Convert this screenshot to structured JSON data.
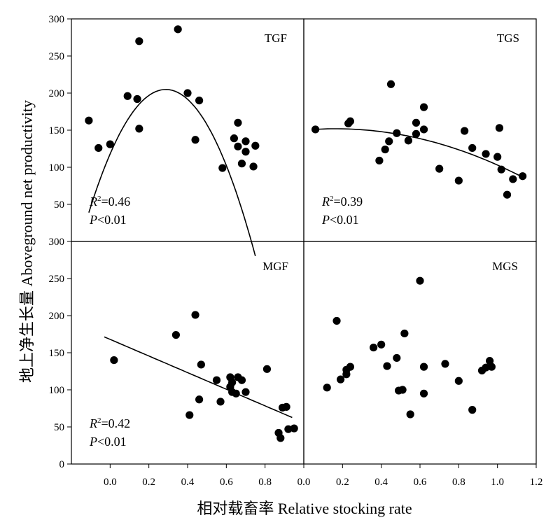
{
  "figure": {
    "ylabel": "地上净生长量 Aboveground net productivity",
    "xlabel": "相对载畜率 Relative stocking rate"
  },
  "chart_data": [
    {
      "type": "scatter",
      "panel": "TGF",
      "xlim": [
        -0.2,
        1.0
      ],
      "ylim": [
        0,
        300
      ],
      "xticks": [
        "0.0",
        "0.2",
        "0.4",
        "0.6",
        "0.8"
      ],
      "yticks": [
        "300",
        "250",
        "200",
        "150",
        "100",
        "50"
      ],
      "points": [
        [
          -0.11,
          163
        ],
        [
          -0.06,
          126
        ],
        [
          0.0,
          131
        ],
        [
          0.09,
          196
        ],
        [
          0.14,
          192
        ],
        [
          0.15,
          152
        ],
        [
          0.15,
          270
        ],
        [
          0.35,
          286
        ],
        [
          0.4,
          200
        ],
        [
          0.44,
          137
        ],
        [
          0.46,
          190
        ],
        [
          0.58,
          99
        ],
        [
          0.64,
          139
        ],
        [
          0.66,
          160
        ],
        [
          0.66,
          128
        ],
        [
          0.68,
          105
        ],
        [
          0.7,
          135
        ],
        [
          0.7,
          121
        ],
        [
          0.74,
          101
        ],
        [
          0.75,
          129
        ]
      ],
      "fit": {
        "type": "quadratic",
        "x_range": [
          -0.11,
          0.75
        ],
        "coef": [
          118,
          604,
          -1050
        ]
      },
      "r2_label": "R",
      "r2_sup": "2",
      "r2_value": "=0.46",
      "p_label": "P",
      "p_value": "<0.01"
    },
    {
      "type": "scatter",
      "panel": "TGS",
      "xlim": [
        0.0,
        1.2
      ],
      "ylim": [
        0,
        300
      ],
      "xticks": [
        "0.0",
        "0.2",
        "0.4",
        "0.6",
        "0.8",
        "1.0",
        "1.2"
      ],
      "yticks": [],
      "points": [
        [
          0.06,
          151
        ],
        [
          0.23,
          159
        ],
        [
          0.24,
          162
        ],
        [
          0.39,
          109
        ],
        [
          0.42,
          124
        ],
        [
          0.44,
          135
        ],
        [
          0.45,
          212
        ],
        [
          0.48,
          146
        ],
        [
          0.54,
          136
        ],
        [
          0.58,
          145
        ],
        [
          0.58,
          160
        ],
        [
          0.62,
          181
        ],
        [
          0.62,
          151
        ],
        [
          0.7,
          98
        ],
        [
          0.8,
          82
        ],
        [
          0.83,
          149
        ],
        [
          0.87,
          126
        ],
        [
          0.94,
          118
        ],
        [
          1.0,
          114
        ],
        [
          1.01,
          153
        ],
        [
          1.02,
          97
        ],
        [
          1.05,
          63
        ],
        [
          1.08,
          84
        ],
        [
          1.13,
          88
        ]
      ],
      "fit": {
        "type": "quadratic",
        "x_range": [
          0.05,
          1.13
        ],
        "coef": [
          150,
          23,
          -70
        ]
      },
      "r2_label": "R",
      "r2_sup": "2",
      "r2_value": "=0.39",
      "p_label": "P",
      "p_value": "<0.01"
    },
    {
      "type": "scatter",
      "panel": "MGF",
      "xlim": [
        -0.2,
        1.0
      ],
      "ylim": [
        0,
        300
      ],
      "xticks": [
        "0.0",
        "0.2",
        "0.4",
        "0.6",
        "0.8"
      ],
      "yticks": [
        "300",
        "250",
        "200",
        "150",
        "100",
        "50",
        "0"
      ],
      "points": [
        [
          0.02,
          140
        ],
        [
          0.34,
          174
        ],
        [
          0.41,
          66
        ],
        [
          0.44,
          201
        ],
        [
          0.46,
          87
        ],
        [
          0.47,
          134
        ],
        [
          0.55,
          113
        ],
        [
          0.57,
          84
        ],
        [
          0.62,
          104
        ],
        [
          0.62,
          117
        ],
        [
          0.63,
          97
        ],
        [
          0.63,
          110
        ],
        [
          0.65,
          95
        ],
        [
          0.66,
          117
        ],
        [
          0.68,
          113
        ],
        [
          0.7,
          97
        ],
        [
          0.81,
          128
        ],
        [
          0.87,
          42
        ],
        [
          0.88,
          35
        ],
        [
          0.89,
          76
        ],
        [
          0.91,
          77
        ],
        [
          0.92,
          47
        ],
        [
          0.95,
          48
        ]
      ],
      "fit": {
        "type": "linear",
        "x_range": [
          -0.03,
          0.94
        ],
        "coef": [
          168,
          -112
        ]
      },
      "r2_label": "R",
      "r2_sup": "2",
      "r2_value": "=0.42",
      "p_label": "P",
      "p_value": "<0.01"
    },
    {
      "type": "scatter",
      "panel": "MGS",
      "xlim": [
        0.0,
        1.2
      ],
      "ylim": [
        0,
        300
      ],
      "xticks": [
        "0.0",
        "0.2",
        "0.4",
        "0.6",
        "0.8",
        "1.0",
        "1.2"
      ],
      "yticks": [],
      "points": [
        [
          0.12,
          103
        ],
        [
          0.17,
          193
        ],
        [
          0.19,
          114
        ],
        [
          0.22,
          121
        ],
        [
          0.22,
          127
        ],
        [
          0.24,
          131
        ],
        [
          0.36,
          157
        ],
        [
          0.4,
          161
        ],
        [
          0.43,
          132
        ],
        [
          0.48,
          143
        ],
        [
          0.49,
          99
        ],
        [
          0.51,
          100
        ],
        [
          0.52,
          176
        ],
        [
          0.55,
          67
        ],
        [
          0.6,
          247
        ],
        [
          0.62,
          131
        ],
        [
          0.62,
          95
        ],
        [
          0.73,
          135
        ],
        [
          0.8,
          112
        ],
        [
          0.87,
          73
        ],
        [
          0.92,
          126
        ],
        [
          0.94,
          130
        ],
        [
          0.96,
          139
        ],
        [
          0.97,
          131
        ]
      ]
    }
  ]
}
